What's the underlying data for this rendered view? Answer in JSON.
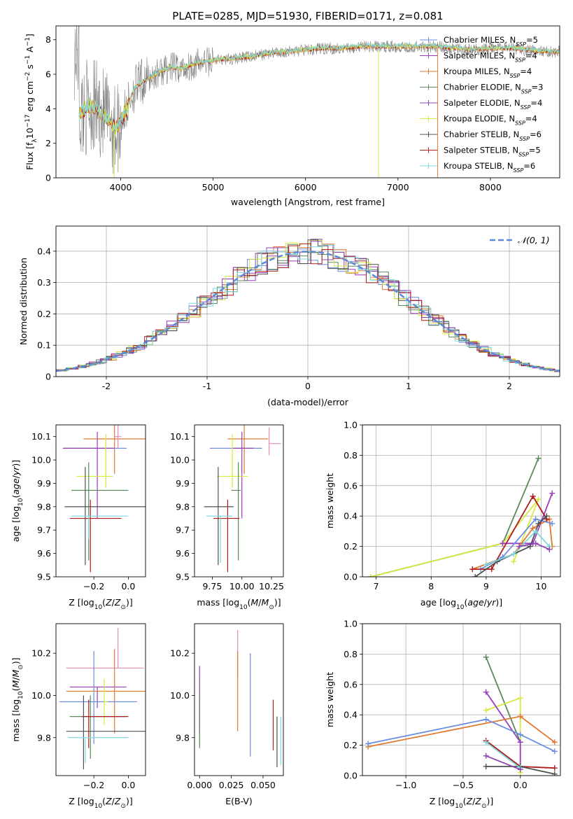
{
  "figure": {
    "title": "PLATE=0285, MJD=51930, FIBERID=0171, z=0.081"
  },
  "colors": {
    "Chabrier MILES": "#6b8ee0",
    "Salpeter MILES": "#9b3cc0",
    "Kroupa MILES": "#e07a30",
    "Chabrier ELODIE": "#5a8a5a",
    "Salpeter ELODIE": "#8e44ad",
    "Kroupa ELODIE": "#d8e840",
    "Chabrier STELIB": "#505050",
    "Salpeter STELIB": "#b01c1c",
    "Kroupa STELIB": "#7fd8e0",
    "pink": "#e88ab8",
    "data": "#808080"
  },
  "legend": [
    {
      "name": "Chabrier MILES",
      "nssp": "5"
    },
    {
      "name": "Salpeter MILES",
      "nssp": "4"
    },
    {
      "name": "Kroupa MILES",
      "nssp": "4"
    },
    {
      "name": "Chabrier ELODIE",
      "nssp": "3"
    },
    {
      "name": "Salpeter ELODIE",
      "nssp": "4"
    },
    {
      "name": "Kroupa ELODIE",
      "nssp": "4"
    },
    {
      "name": "Chabrier STELIB",
      "nssp": "6"
    },
    {
      "name": "Salpeter STELIB",
      "nssp": "5"
    },
    {
      "name": "Kroupa STELIB",
      "nssp": "6"
    }
  ],
  "chart_data": [
    {
      "id": "spectrum",
      "type": "line",
      "title": "PLATE=0285, MJD=51930, FIBERID=0171, z=0.081",
      "xlabel": "wavelength [Angstrom, rest frame]",
      "ylabel": "Flux [f_λ 10^-17 erg cm^-2 s^-1 A^-1]",
      "xlim": [
        3300,
        8750
      ],
      "ylim": [
        0,
        8.8
      ],
      "xticks": [
        4000,
        5000,
        6000,
        7000,
        8000
      ],
      "yticks": [
        0,
        2,
        4,
        6,
        8
      ],
      "model_curve": {
        "x": [
          3550,
          3650,
          3750,
          3850,
          3950,
          4050,
          4150,
          4250,
          4350,
          4450,
          4550,
          4650,
          4800,
          5000,
          5200,
          5400,
          5600,
          5800,
          6000,
          6200,
          6400,
          6600,
          6800,
          7000,
          7200,
          7400,
          7600,
          7800,
          8000,
          8200,
          8400,
          8600,
          8750
        ],
        "y": [
          3.6,
          4.2,
          4.0,
          3.4,
          2.8,
          3.8,
          5.2,
          5.6,
          5.9,
          6.2,
          6.4,
          6.3,
          6.6,
          6.8,
          6.9,
          7.0,
          7.2,
          7.3,
          7.4,
          7.5,
          7.5,
          7.6,
          7.6,
          7.6,
          7.6,
          7.6,
          7.5,
          7.4,
          7.5,
          7.5,
          7.4,
          7.3,
          7.3
        ]
      },
      "grid": false,
      "legend_position": "upper right"
    },
    {
      "id": "residuals",
      "type": "line",
      "xlabel": "(data-model)/error",
      "ylabel": "Normed distribution",
      "xlim": [
        -2.5,
        2.5
      ],
      "ylim": [
        0,
        0.48
      ],
      "xticks": [
        -2,
        -1,
        0,
        1,
        2
      ],
      "yticks": [
        0.0,
        0.1,
        0.2,
        0.3,
        0.4
      ],
      "reference_curve": "N(0,1)",
      "legend": "𝒩(0, 1)",
      "grid": true,
      "legend_position": "upper right"
    },
    {
      "id": "age-vs-Z",
      "type": "scatter",
      "xlabel": "Z [log10(Z/Z⊙)]",
      "ylabel": "age [log10(age/yr)]",
      "xlim": [
        -0.42,
        0.1
      ],
      "ylim": [
        9.5,
        10.15
      ],
      "xticks": [
        "−0.2",
        "0.0"
      ],
      "yticks": [
        "9.5",
        "9.6",
        "9.7",
        "9.8",
        "9.9",
        "10.0",
        "10.1"
      ],
      "series": [
        {
          "color": "Kroupa MILES",
          "x": -0.08,
          "y": 10.09,
          "xerr": [
            0.18,
            0.18
          ],
          "yerr": [
            0.15,
            0.06
          ]
        },
        {
          "color": "Chabrier MILES",
          "x": -0.15,
          "y": 10.05,
          "xerr": [
            0.22,
            0.14
          ],
          "yerr": [
            0.0,
            0.0
          ]
        },
        {
          "color": "Salpeter MILES",
          "x": -0.18,
          "y": 10.05,
          "xerr": [
            0.2,
            0.1
          ],
          "yerr": [
            0.3,
            0.07
          ]
        },
        {
          "color": "Kroupa ELODIE",
          "x": -0.13,
          "y": 9.93,
          "xerr": [
            0.17,
            0.04
          ],
          "yerr": [
            0.05,
            0.18
          ]
        },
        {
          "color": "Chabrier ELODIE",
          "x": -0.23,
          "y": 9.87,
          "xerr": [
            0.1,
            0.23
          ],
          "yerr": [
            0.3,
            0.12
          ]
        },
        {
          "color": "Chabrier STELIB",
          "x": -0.25,
          "y": 9.8,
          "xerr": [
            0.12,
            0.36
          ],
          "yerr": [
            0.25,
            0.17
          ]
        },
        {
          "color": "Salpeter STELIB",
          "x": -0.22,
          "y": 9.75,
          "xerr": [
            0.12,
            0.18
          ],
          "yerr": [
            0.23,
            0.08
          ]
        },
        {
          "color": "Kroupa STELIB",
          "x": -0.23,
          "y": 9.76,
          "xerr": [
            0.1,
            0.23
          ],
          "yerr": [
            0.1,
            0.0
          ]
        },
        {
          "color": "pink",
          "x": -0.06,
          "y": 10.1,
          "xerr": [
            0.02,
            0.02
          ],
          "yerr": [
            0.05,
            0.05
          ]
        }
      ]
    },
    {
      "id": "age-vs-mass",
      "type": "scatter",
      "xlabel": "mass [log10(M/M⊙)]",
      "ylabel": "",
      "xlim": [
        9.6,
        10.35
      ],
      "ylim": [
        9.5,
        10.15
      ],
      "xticks": [
        "9.75",
        "10.00",
        "10.25"
      ],
      "yticks": [
        "9.5",
        "9.6",
        "9.7",
        "9.8",
        "9.9",
        "10.0",
        "10.1"
      ],
      "series": [
        {
          "color": "Kroupa MILES",
          "x": 10.02,
          "y": 10.09,
          "xerr": [
            0.14,
            0.2
          ],
          "yerr": [
            0.15,
            0.06
          ]
        },
        {
          "color": "Chabrier MILES",
          "x": 9.97,
          "y": 10.05,
          "xerr": [
            0.24,
            0.2
          ],
          "yerr": [
            0.0,
            0.0
          ]
        },
        {
          "color": "pink",
          "x": 10.23,
          "y": 10.07,
          "xerr": [
            0.0,
            0.1
          ],
          "yerr": [
            0.05,
            0.07
          ]
        },
        {
          "color": "Salpeter MILES",
          "x": 10.0,
          "y": 10.05,
          "xerr": [
            0.08,
            0.1
          ],
          "yerr": [
            0.3,
            0.07
          ]
        },
        {
          "color": "Kroupa ELODIE",
          "x": 9.92,
          "y": 9.93,
          "xerr": [
            0.13,
            0.13
          ],
          "yerr": [
            0.05,
            0.18
          ]
        },
        {
          "color": "Chabrier ELODIE",
          "x": 9.97,
          "y": 9.87,
          "xerr": [
            0.06,
            0.02
          ],
          "yerr": [
            0.3,
            0.12
          ]
        },
        {
          "color": "Chabrier STELIB",
          "x": 9.8,
          "y": 9.8,
          "xerr": [
            0.12,
            0.13
          ],
          "yerr": [
            0.25,
            0.17
          ]
        },
        {
          "color": "Salpeter STELIB",
          "x": 9.88,
          "y": 9.75,
          "xerr": [
            0.12,
            0.1
          ],
          "yerr": [
            0.23,
            0.08
          ]
        },
        {
          "color": "Kroupa STELIB",
          "x": 9.82,
          "y": 9.76,
          "xerr": [
            0.12,
            0.1
          ],
          "yerr": [
            0.2,
            0.0
          ]
        }
      ]
    },
    {
      "id": "weight-vs-age",
      "type": "line",
      "xlabel": "age [log10(age/yr)]",
      "ylabel": "mass weight",
      "xlim": [
        6.75,
        10.35
      ],
      "ylim": [
        0,
        1.0
      ],
      "xticks": [
        "7",
        "8",
        "9",
        "10"
      ],
      "yticks": [
        "0.0",
        "0.2",
        "0.4",
        "0.6",
        "0.8",
        "1.0"
      ],
      "grid": true,
      "series": [
        {
          "color": "Chabrier ELODIE",
          "x": [
            6.9,
            9.3,
            9.95
          ],
          "y": [
            0.0,
            0.22,
            0.78
          ]
        },
        {
          "color": "Kroupa ELODIE",
          "x": [
            6.9,
            9.3,
            9.95,
            9.5
          ],
          "y": [
            0.0,
            0.22,
            0.51,
            0.1
          ]
        },
        {
          "color": "Salpeter MILES",
          "x": [
            9.3,
            9.85,
            10.2
          ],
          "y": [
            0.22,
            0.22,
            0.55
          ]
        },
        {
          "color": "Kroupa MILES",
          "x": [
            8.75,
            9.5,
            9.85,
            10.15,
            10.2
          ],
          "y": [
            0.05,
            0.15,
            0.32,
            0.38,
            0.2
          ]
        },
        {
          "color": "Chabrier MILES",
          "x": [
            8.9,
            9.3,
            9.9,
            10.2
          ],
          "y": [
            0.05,
            0.13,
            0.38,
            0.35
          ]
        },
        {
          "color": "Salpeter STELIB",
          "x": [
            8.75,
            9.1,
            9.85,
            10.1
          ],
          "y": [
            0.05,
            0.05,
            0.53,
            0.38
          ]
        },
        {
          "color": "Chabrier STELIB",
          "x": [
            8.8,
            9.2,
            9.8,
            9.95,
            10.1
          ],
          "y": [
            0.0,
            0.1,
            0.2,
            0.35,
            0.4
          ]
        },
        {
          "color": "Kroupa STELIB",
          "x": [
            9.0,
            9.5,
            9.9,
            10.15
          ],
          "y": [
            0.08,
            0.15,
            0.3,
            0.2
          ]
        },
        {
          "color": "Salpeter ELODIE",
          "x": [
            9.6,
            9.9,
            10.15
          ],
          "y": [
            0.2,
            0.22,
            0.18
          ]
        }
      ]
    },
    {
      "id": "mass-vs-Z",
      "type": "scatter",
      "xlabel": "Z [log10(Z/Z⊙)]",
      "ylabel": "mass [log10(M/M⊙)]",
      "xlim": [
        -0.42,
        0.1
      ],
      "ylim": [
        9.62,
        10.34
      ],
      "xticks": [
        "−0.2",
        "0.0"
      ],
      "yticks": [
        "9.8",
        "10.0",
        "10.2"
      ],
      "series": [
        {
          "color": "pink",
          "x": -0.06,
          "y": 10.13,
          "xerr": [
            0.3,
            0.15
          ],
          "yerr": [
            0.0,
            0.19
          ]
        },
        {
          "color": "Salpeter MILES",
          "x": -0.18,
          "y": 10.04,
          "xerr": [
            0.16,
            0.17
          ],
          "yerr": [
            0.1,
            0.0
          ]
        },
        {
          "color": "Kroupa MILES",
          "x": -0.08,
          "y": 10.02,
          "xerr": [
            0.28,
            0.18
          ],
          "yerr": [
            0.2,
            0.2
          ]
        },
        {
          "color": "Chabrier MILES",
          "x": -0.2,
          "y": 9.97,
          "xerr": [
            0.2,
            0.25
          ],
          "yerr": [
            0.2,
            0.24
          ]
        },
        {
          "color": "Kroupa ELODIE",
          "x": -0.14,
          "y": 9.97,
          "xerr": [
            0.0,
            0.02
          ],
          "yerr": [
            0.11,
            0.11
          ]
        },
        {
          "color": "Chabrier ELODIE",
          "x": -0.22,
          "y": 9.9,
          "xerr": [
            0.12,
            0.2
          ],
          "yerr": [
            0.2,
            0.1
          ]
        },
        {
          "color": "Salpeter STELIB",
          "x": -0.23,
          "y": 9.9,
          "xerr": [
            0.04,
            0.23
          ],
          "yerr": [
            0.15,
            0.08
          ]
        },
        {
          "color": "Chabrier STELIB",
          "x": -0.26,
          "y": 9.83,
          "xerr": [
            0.1,
            0.36
          ],
          "yerr": [
            0.18,
            0.17
          ]
        },
        {
          "color": "Kroupa STELIB",
          "x": -0.25,
          "y": 9.8,
          "xerr": [
            0.1,
            0.25
          ],
          "yerr": [
            0.12,
            0.0
          ]
        }
      ]
    },
    {
      "id": "mass-vs-EBV",
      "type": "scatter",
      "xlabel": "E(B-V)",
      "ylabel": "",
      "xlim": [
        -0.004,
        0.066
      ],
      "ylim": [
        9.62,
        10.34
      ],
      "xticks": [
        "0.000",
        "0.025",
        "0.050"
      ],
      "yticks": [
        "9.8",
        "10.0",
        "10.2"
      ],
      "series": [
        {
          "color": "Kroupa ELODIE",
          "x": 0.0,
          "y": 9.97,
          "yerr": [
            0.2,
            0.11
          ]
        },
        {
          "color": "Salpeter MILES",
          "x": 0.0,
          "y": 10.04,
          "yerr": [
            0.22,
            0.1
          ]
        },
        {
          "color": "Chabrier ELODIE",
          "x": 0.0,
          "y": 9.9,
          "yerr": [
            0.15,
            0.1
          ]
        },
        {
          "color": "pink",
          "x": 0.03,
          "y": 10.13,
          "yerr": [
            0.05,
            0.18
          ]
        },
        {
          "color": "Kroupa MILES",
          "x": 0.03,
          "y": 10.02,
          "yerr": [
            0.19,
            0.19
          ]
        },
        {
          "color": "Chabrier MILES",
          "x": 0.04,
          "y": 9.97,
          "yerr": [
            0.26,
            0.23
          ]
        },
        {
          "color": "Salpeter STELIB",
          "x": 0.058,
          "y": 9.9,
          "yerr": [
            0.16,
            0.08
          ]
        },
        {
          "color": "Chabrier STELIB",
          "x": 0.061,
          "y": 9.83,
          "yerr": [
            0.17,
            0.07
          ]
        },
        {
          "color": "Kroupa STELIB",
          "x": 0.064,
          "y": 9.8,
          "yerr": [
            0.13,
            0.1
          ]
        }
      ]
    },
    {
      "id": "weight-vs-Z",
      "type": "line",
      "xlabel": "Z [log10(Z/Z⊙)]",
      "ylabel": "mass weight",
      "xlim": [
        -1.38,
        0.35
      ],
      "ylim": [
        0,
        1.0
      ],
      "xticks": [
        "−1.0",
        "−0.5",
        "0.0"
      ],
      "yticks": [
        "0.0",
        "0.2",
        "0.4",
        "0.6",
        "0.8",
        "1.0"
      ],
      "grid": true,
      "series": [
        {
          "color": "Chabrier ELODIE",
          "x": [
            -0.3,
            0.0
          ],
          "y": [
            0.78,
            0.22
          ]
        },
        {
          "color": "Kroupa ELODIE",
          "x": [
            -0.3,
            0.0,
            0.0
          ],
          "y": [
            0.43,
            0.51,
            0.02
          ]
        },
        {
          "color": "Salpeter MILES",
          "x": [
            -0.3,
            0.0,
            0.0
          ],
          "y": [
            0.55,
            0.22,
            0.06
          ]
        },
        {
          "color": "Kroupa MILES",
          "x": [
            -1.33,
            0.0,
            0.3
          ],
          "y": [
            0.19,
            0.39,
            0.22
          ]
        },
        {
          "color": "Chabrier MILES",
          "x": [
            -1.33,
            -0.3,
            0.0,
            0.3
          ],
          "y": [
            0.21,
            0.37,
            0.27,
            0.16
          ]
        },
        {
          "color": "Salpeter STELIB",
          "x": [
            -0.3,
            0.0,
            0.3
          ],
          "y": [
            0.23,
            0.06,
            0.05
          ]
        },
        {
          "color": "Chabrier STELIB",
          "x": [
            -0.3,
            0.0,
            0.3
          ],
          "y": [
            0.06,
            0.06,
            0.01
          ]
        },
        {
          "color": "Kroupa STELIB",
          "x": [
            -0.3,
            0.0
          ],
          "y": [
            0.22,
            0.05
          ]
        },
        {
          "color": "Salpeter ELODIE",
          "x": [
            -0.3,
            0.0
          ],
          "y": [
            0.13,
            0.04
          ]
        }
      ]
    }
  ]
}
